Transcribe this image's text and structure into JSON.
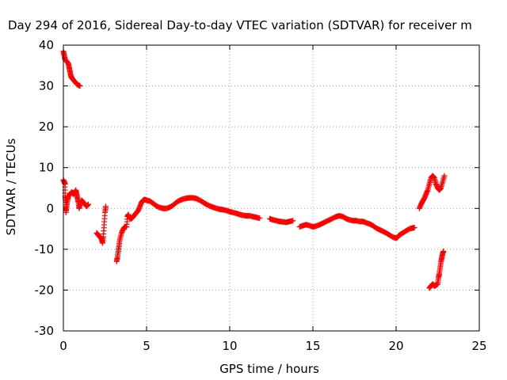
{
  "chart_data": {
    "type": "scatter",
    "title": "Day 294 of 2016, Sidereal Day-to-day VTEC variation (SDTVAR) for receiver m",
    "xlabel": "GPS time / hours",
    "ylabel": "SDTVAR / TECUs",
    "xlim": [
      0,
      25
    ],
    "ylim": [
      -30,
      40
    ],
    "xticks": [
      0,
      5,
      10,
      15,
      20,
      25
    ],
    "yticks": [
      -30,
      -20,
      -10,
      0,
      10,
      20,
      30,
      40
    ],
    "grid": true,
    "marker": "+",
    "series": [
      {
        "name": "SDTVAR",
        "color": "#ff0000",
        "segments": [
          [
            [
              0.0,
              38.5
            ],
            [
              0.05,
              37.5
            ],
            [
              0.1,
              36.5
            ],
            [
              0.2,
              36
            ],
            [
              0.3,
              35.5
            ],
            [
              0.35,
              34.5
            ],
            [
              0.4,
              33.5
            ],
            [
              0.45,
              32.5
            ],
            [
              0.5,
              32
            ],
            [
              0.6,
              31.5
            ],
            [
              0.7,
              31
            ],
            [
              0.8,
              30.5
            ],
            [
              0.9,
              30.2
            ],
            [
              1.0,
              30
            ]
          ],
          [
            [
              0.0,
              7
            ],
            [
              0.05,
              6.5
            ],
            [
              0.1,
              6
            ],
            [
              0.1,
              3
            ],
            [
              0.15,
              1.5
            ],
            [
              0.15,
              -1
            ],
            [
              0.2,
              0.5
            ],
            [
              0.25,
              2
            ],
            [
              0.3,
              3
            ],
            [
              0.4,
              3.5
            ],
            [
              0.5,
              4
            ],
            [
              0.6,
              3.5
            ],
            [
              0.7,
              4
            ],
            [
              0.75,
              4.5
            ],
            [
              0.8,
              3.5
            ],
            [
              0.85,
              2.5
            ],
            [
              0.9,
              1.5
            ],
            [
              0.95,
              0
            ],
            [
              1.0,
              1
            ],
            [
              1.1,
              2
            ],
            [
              1.2,
              1.5
            ],
            [
              1.3,
              1
            ],
            [
              1.4,
              0.5
            ],
            [
              1.5,
              1
            ]
          ],
          [
            [
              2.0,
              -6
            ],
            [
              2.1,
              -6.5
            ],
            [
              2.2,
              -7
            ],
            [
              2.3,
              -7.5
            ],
            [
              2.35,
              -8.5
            ],
            [
              2.4,
              -7
            ],
            [
              2.45,
              -4
            ],
            [
              2.5,
              -1
            ],
            [
              2.55,
              0.5
            ]
          ],
          [
            [
              3.2,
              -13
            ],
            [
              3.25,
              -12
            ],
            [
              3.3,
              -10.5
            ],
            [
              3.35,
              -9
            ],
            [
              3.4,
              -7.5
            ],
            [
              3.5,
              -6
            ],
            [
              3.6,
              -5
            ],
            [
              3.7,
              -4.5
            ],
            [
              3.8,
              -4.5
            ],
            [
              3.85,
              -2
            ],
            [
              3.9,
              -1.5
            ],
            [
              4.0,
              -2.5
            ],
            [
              4.1,
              -2.5
            ],
            [
              4.2,
              -2
            ],
            [
              4.3,
              -1.5
            ],
            [
              4.4,
              -1
            ],
            [
              4.5,
              -0.5
            ],
            [
              4.6,
              0.5
            ],
            [
              4.7,
              1.5
            ],
            [
              4.8,
              2
            ],
            [
              4.9,
              2.2
            ],
            [
              5.0,
              2
            ],
            [
              5.2,
              1.8
            ],
            [
              5.4,
              1.2
            ],
            [
              5.6,
              0.6
            ],
            [
              5.8,
              0.2
            ],
            [
              6.0,
              0
            ],
            [
              6.2,
              0
            ],
            [
              6.4,
              0.3
            ],
            [
              6.6,
              0.8
            ],
            [
              6.8,
              1.5
            ],
            [
              7.0,
              2
            ],
            [
              7.2,
              2.3
            ],
            [
              7.4,
              2.5
            ],
            [
              7.6,
              2.6
            ],
            [
              7.8,
              2.6
            ],
            [
              8.0,
              2.4
            ],
            [
              8.2,
              2
            ],
            [
              8.4,
              1.5
            ],
            [
              8.6,
              1
            ],
            [
              8.8,
              0.6
            ],
            [
              9.0,
              0.3
            ],
            [
              9.2,
              0
            ],
            [
              9.4,
              -0.2
            ],
            [
              9.6,
              -0.3
            ],
            [
              9.8,
              -0.5
            ],
            [
              10.0,
              -0.8
            ],
            [
              10.2,
              -1
            ],
            [
              10.4,
              -1.2
            ],
            [
              10.6,
              -1.5
            ],
            [
              10.8,
              -1.7
            ],
            [
              11.0,
              -1.8
            ],
            [
              11.2,
              -1.8
            ],
            [
              11.4,
              -2
            ],
            [
              11.6,
              -2.2
            ],
            [
              11.8,
              -2.4
            ]
          ],
          [
            [
              12.4,
              -2.5
            ],
            [
              12.6,
              -2.8
            ],
            [
              12.8,
              -3
            ],
            [
              13.0,
              -3.2
            ],
            [
              13.2,
              -3.3
            ],
            [
              13.4,
              -3.4
            ],
            [
              13.6,
              -3.2
            ],
            [
              13.8,
              -3
            ]
          ],
          [
            [
              14.2,
              -4.5
            ],
            [
              14.4,
              -4.2
            ],
            [
              14.6,
              -4
            ],
            [
              14.8,
              -4.2
            ],
            [
              15.0,
              -4.5
            ],
            [
              15.2,
              -4.3
            ],
            [
              15.4,
              -4
            ],
            [
              15.6,
              -3.6
            ],
            [
              15.8,
              -3.2
            ],
            [
              16.0,
              -2.8
            ],
            [
              16.2,
              -2.4
            ],
            [
              16.4,
              -2
            ],
            [
              16.6,
              -1.8
            ],
            [
              16.8,
              -2
            ],
            [
              17.0,
              -2.5
            ],
            [
              17.2,
              -2.8
            ],
            [
              17.4,
              -3
            ],
            [
              17.6,
              -3
            ],
            [
              17.8,
              -3.2
            ],
            [
              18.0,
              -3.2
            ],
            [
              18.2,
              -3.5
            ],
            [
              18.4,
              -3.8
            ],
            [
              18.6,
              -4.2
            ],
            [
              18.8,
              -4.8
            ],
            [
              19.0,
              -5.2
            ],
            [
              19.2,
              -5.6
            ],
            [
              19.4,
              -6
            ],
            [
              19.6,
              -6.5
            ],
            [
              19.8,
              -7
            ],
            [
              20.0,
              -7.3
            ],
            [
              20.1,
              -7
            ],
            [
              20.2,
              -6.5
            ],
            [
              20.4,
              -6
            ],
            [
              20.6,
              -5.5
            ],
            [
              20.8,
              -5
            ],
            [
              21.0,
              -4.8
            ],
            [
              21.1,
              -4.7
            ]
          ],
          [
            [
              21.4,
              0
            ],
            [
              21.5,
              1
            ],
            [
              21.6,
              1.8
            ],
            [
              21.7,
              2.5
            ],
            [
              21.8,
              3.5
            ],
            [
              21.9,
              4.5
            ],
            [
              22.0,
              6
            ],
            [
              22.1,
              7.5
            ],
            [
              22.2,
              8
            ],
            [
              22.3,
              7.5
            ],
            [
              22.4,
              6
            ],
            [
              22.5,
              5
            ],
            [
              22.6,
              4.5
            ],
            [
              22.7,
              5
            ],
            [
              22.8,
              6.5
            ],
            [
              22.9,
              8
            ]
          ],
          [
            [
              22.0,
              -19.5
            ],
            [
              22.1,
              -19
            ],
            [
              22.2,
              -18.5
            ],
            [
              22.3,
              -19
            ],
            [
              22.4,
              -18.8
            ],
            [
              22.5,
              -18.5
            ],
            [
              22.55,
              -17
            ],
            [
              22.6,
              -16
            ],
            [
              22.65,
              -14.5
            ],
            [
              22.7,
              -13
            ],
            [
              22.75,
              -12
            ],
            [
              22.8,
              -11
            ],
            [
              22.85,
              -10.5
            ]
          ]
        ]
      }
    ]
  }
}
